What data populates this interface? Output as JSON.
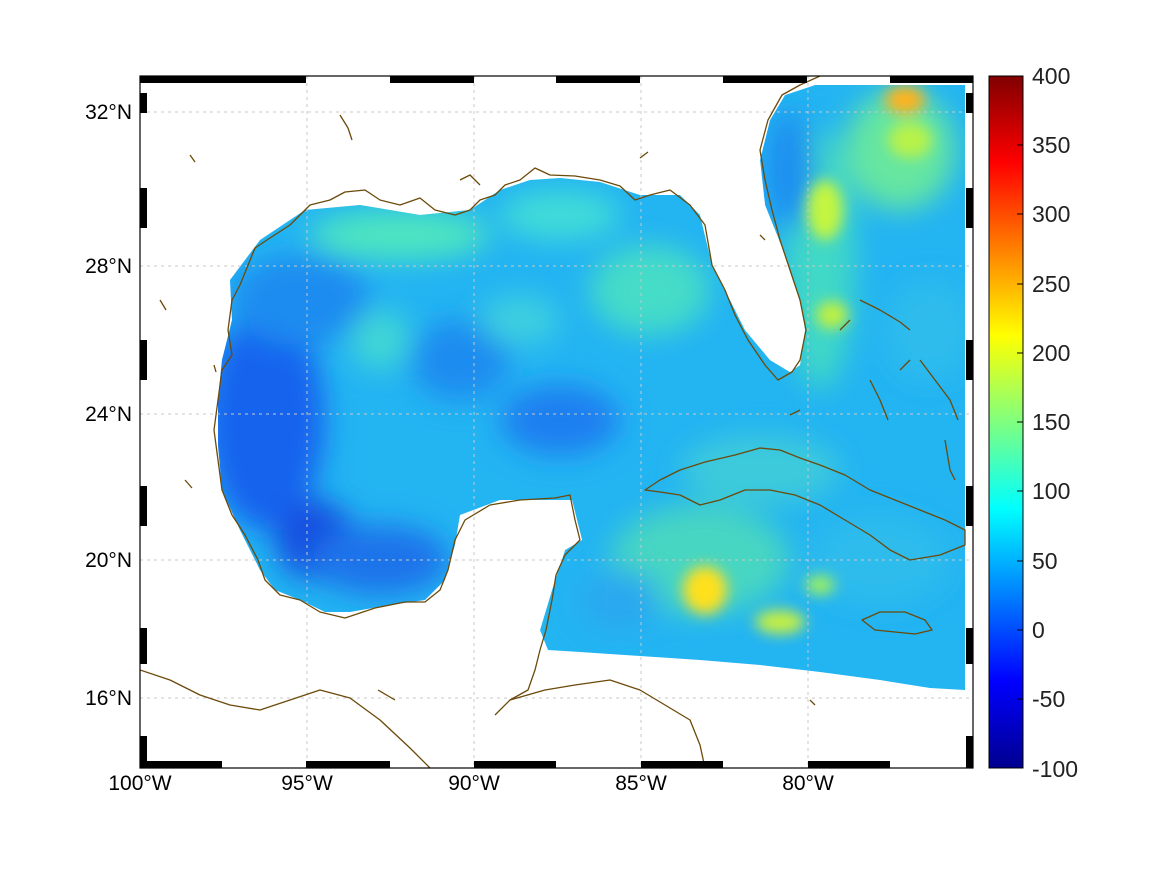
{
  "map": {
    "region": "Gulf of Mexico and Caribbean",
    "xlim": [
      -100,
      -75
    ],
    "ylim": [
      14.3,
      33
    ]
  },
  "axes": {
    "lon_ticks": [
      {
        "value": -100,
        "label": "100°W"
      },
      {
        "value": -95,
        "label": "95°W"
      },
      {
        "value": -90,
        "label": "90°W"
      },
      {
        "value": -85,
        "label": "85°W"
      },
      {
        "value": -80,
        "label": "80°W"
      }
    ],
    "lat_ticks": [
      {
        "value": 32,
        "label": "32°N"
      },
      {
        "value": 28,
        "label": "28°N"
      },
      {
        "value": 24,
        "label": "24°N"
      },
      {
        "value": 20,
        "label": "20°N"
      },
      {
        "value": 16,
        "label": "16°N"
      }
    ],
    "grid": true,
    "frame": "black-white checkered border"
  },
  "colorbar": {
    "colormap": "jet",
    "min": -100,
    "max": 400,
    "ticks": [
      "400",
      "350",
      "300",
      "250",
      "200",
      "150",
      "100",
      "50",
      "0",
      "-50",
      "-100"
    ]
  },
  "colors": {
    "coastline": "#6b4a0a",
    "grid": "#c8c8c8"
  }
}
